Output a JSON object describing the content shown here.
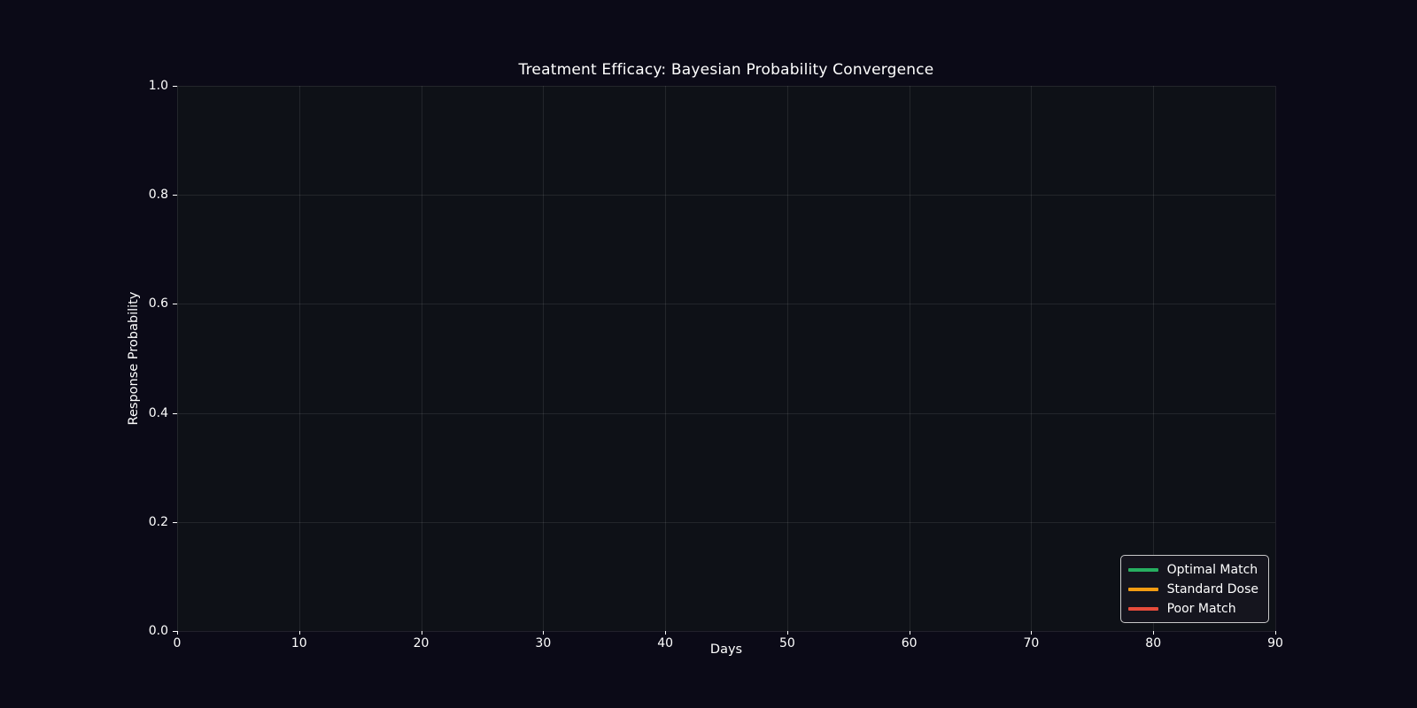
{
  "figure": {
    "background": "#0b0a17",
    "plot_background": "#0e1117",
    "grid_color": "rgba(255,255,255,0.09)",
    "text_color": "#ffffff",
    "tick_color": "#ffffff",
    "legend_background": "#15151e",
    "legend_border": "#c8c8c8"
  },
  "chart_data": {
    "type": "line",
    "title": "Treatment Efficacy: Bayesian Probability Convergence",
    "xlabel": "Days",
    "ylabel": "Response Probability",
    "xlim": [
      0,
      90
    ],
    "ylim": [
      0.0,
      1.0
    ],
    "grid": true,
    "x_ticks": [
      {
        "v": 0,
        "label": "0"
      },
      {
        "v": 10,
        "label": "10"
      },
      {
        "v": 20,
        "label": "20"
      },
      {
        "v": 30,
        "label": "30"
      },
      {
        "v": 40,
        "label": "40"
      },
      {
        "v": 50,
        "label": "50"
      },
      {
        "v": 60,
        "label": "60"
      },
      {
        "v": 70,
        "label": "70"
      },
      {
        "v": 80,
        "label": "80"
      },
      {
        "v": 90,
        "label": "90"
      }
    ],
    "y_ticks": [
      {
        "v": 0.0,
        "label": "0.0"
      },
      {
        "v": 0.2,
        "label": "0.2"
      },
      {
        "v": 0.4,
        "label": "0.4"
      },
      {
        "v": 0.6,
        "label": "0.6"
      },
      {
        "v": 0.8,
        "label": "0.8"
      },
      {
        "v": 1.0,
        "label": "1.0"
      }
    ],
    "legend": {
      "position": "lower right"
    },
    "series": [
      {
        "name": "Optimal Match",
        "color": "#27ae60",
        "x": [],
        "y": []
      },
      {
        "name": "Standard Dose",
        "color": "#f39c12",
        "x": [],
        "y": []
      },
      {
        "name": "Poor Match",
        "color": "#e74c3c",
        "x": [],
        "y": []
      }
    ]
  }
}
